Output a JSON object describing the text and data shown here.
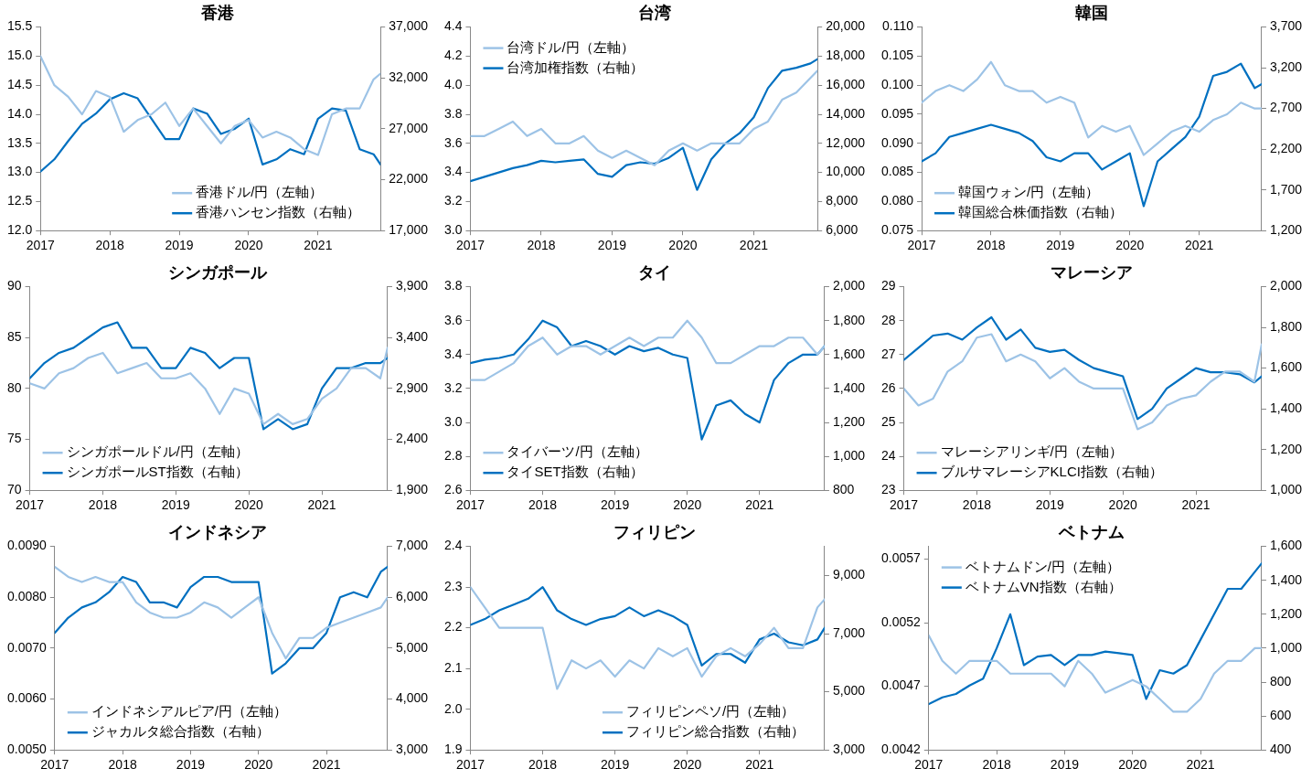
{
  "chart_data": [
    {
      "type": "line",
      "title": "香港",
      "x": [
        2017,
        2017.2,
        2017.4,
        2017.6,
        2017.8,
        2018,
        2018.2,
        2018.4,
        2018.6,
        2018.8,
        2019,
        2019.2,
        2019.4,
        2019.6,
        2019.8,
        2020,
        2020.2,
        2020.4,
        2020.6,
        2020.8,
        2021,
        2021.2,
        2021.4,
        2021.6,
        2021.8,
        2021.9
      ],
      "xlim": [
        2017,
        2021.9
      ],
      "xticks": [
        2017,
        2018,
        2019,
        2020,
        2021
      ],
      "ylim": [
        12,
        15.5
      ],
      "yticks": [
        {
          "value": 12,
          "label": "12.0"
        },
        {
          "value": 12.5,
          "label": "12.5"
        },
        {
          "value": 13,
          "label": "13.0"
        },
        {
          "value": 13.5,
          "label": "13.5"
        },
        {
          "value": 14,
          "label": "14.0"
        },
        {
          "value": 14.5,
          "label": "14.5"
        },
        {
          "value": 15,
          "label": "15.0"
        },
        {
          "value": 15.5,
          "label": "15.5"
        }
      ],
      "y2lim": [
        17000,
        37000
      ],
      "y2ticks": [
        {
          "value": 17000,
          "label": "17,000"
        },
        {
          "value": 22000,
          "label": "22,000"
        },
        {
          "value": 27000,
          "label": "27,000"
        },
        {
          "value": 32000,
          "label": "32,000"
        },
        {
          "value": 37000,
          "label": "37,000"
        }
      ],
      "legend": "bottom right",
      "marker": "none",
      "grid": false,
      "series": [
        {
          "name": "香港ドル/円（左軸）",
          "color": "#9dc3e6",
          "values": [
            15.0,
            14.5,
            14.3,
            14.0,
            14.4,
            14.3,
            13.7,
            13.9,
            14.0,
            14.2,
            13.8,
            14.1,
            13.8,
            13.5,
            13.8,
            13.9,
            13.6,
            13.7,
            13.6,
            13.4,
            13.3,
            14.0,
            14.1,
            14.1,
            14.6,
            14.7
          ]
        },
        {
          "name": "香港ハンセン指数（右軸）",
          "color": "#0070c0",
          "axis": "y2",
          "values": [
            22800,
            24000,
            25800,
            27500,
            28500,
            29900,
            30500,
            30000,
            28000,
            26000,
            26000,
            29000,
            28500,
            26500,
            27000,
            28000,
            23500,
            24000,
            25000,
            24500,
            28000,
            29000,
            28800,
            25000,
            24500,
            23500
          ]
        }
      ]
    },
    {
      "type": "line",
      "title": "台湾",
      "x": [
        2017,
        2017.2,
        2017.4,
        2017.6,
        2017.8,
        2018,
        2018.2,
        2018.4,
        2018.6,
        2018.8,
        2019,
        2019.2,
        2019.4,
        2019.6,
        2019.8,
        2020,
        2020.2,
        2020.4,
        2020.6,
        2020.8,
        2021,
        2021.2,
        2021.4,
        2021.6,
        2021.8,
        2021.9
      ],
      "xlim": [
        2017,
        2021.9
      ],
      "xticks": [
        2017,
        2018,
        2019,
        2020,
        2021
      ],
      "ylim": [
        3,
        4.4
      ],
      "yticks": [
        {
          "value": 3,
          "label": "3.0"
        },
        {
          "value": 3.2,
          "label": "3.2"
        },
        {
          "value": 3.4,
          "label": "3.4"
        },
        {
          "value": 3.6,
          "label": "3.6"
        },
        {
          "value": 3.8,
          "label": "3.8"
        },
        {
          "value": 4,
          "label": "4.0"
        },
        {
          "value": 4.2,
          "label": "4.2"
        },
        {
          "value": 4.4,
          "label": "4.4"
        }
      ],
      "y2lim": [
        6000,
        20000
      ],
      "y2ticks": [
        {
          "value": 6000,
          "label": "6,000"
        },
        {
          "value": 8000,
          "label": "8,000"
        },
        {
          "value": 10000,
          "label": "10,000"
        },
        {
          "value": 12000,
          "label": "12,000"
        },
        {
          "value": 14000,
          "label": "14,000"
        },
        {
          "value": 16000,
          "label": "16,000"
        },
        {
          "value": 18000,
          "label": "18,000"
        },
        {
          "value": 20000,
          "label": "20,000"
        }
      ],
      "legend": "top left",
      "marker": "none",
      "grid": false,
      "series": [
        {
          "name": "台湾ドル/円（左軸）",
          "color": "#9dc3e6",
          "values": [
            3.65,
            3.65,
            3.7,
            3.75,
            3.65,
            3.7,
            3.6,
            3.6,
            3.65,
            3.55,
            3.5,
            3.55,
            3.5,
            3.45,
            3.55,
            3.6,
            3.55,
            3.6,
            3.6,
            3.6,
            3.7,
            3.75,
            3.9,
            3.95,
            4.05,
            4.1
          ]
        },
        {
          "name": "台湾加権指数（右軸）",
          "color": "#0070c0",
          "axis": "y2",
          "values": [
            9400,
            9700,
            10000,
            10300,
            10500,
            10800,
            10700,
            10800,
            10900,
            9900,
            9700,
            10500,
            10700,
            10600,
            11000,
            11700,
            8800,
            10900,
            12000,
            12700,
            13800,
            15800,
            17000,
            17200,
            17500,
            17800
          ]
        }
      ]
    },
    {
      "type": "line",
      "title": "韓国",
      "x": [
        2017,
        2017.2,
        2017.4,
        2017.6,
        2017.8,
        2018,
        2018.2,
        2018.4,
        2018.6,
        2018.8,
        2019,
        2019.2,
        2019.4,
        2019.6,
        2019.8,
        2020,
        2020.2,
        2020.4,
        2020.6,
        2020.8,
        2021,
        2021.2,
        2021.4,
        2021.6,
        2021.8,
        2021.9
      ],
      "xlim": [
        2017,
        2021.9
      ],
      "xticks": [
        2017,
        2018,
        2019,
        2020,
        2021
      ],
      "ylim": [
        0.075,
        0.11
      ],
      "yticks": [
        {
          "value": 0.075,
          "label": "0.075"
        },
        {
          "value": 0.08,
          "label": "0.080"
        },
        {
          "value": 0.085,
          "label": "0.085"
        },
        {
          "value": 0.09,
          "label": "0.090"
        },
        {
          "value": 0.095,
          "label": "0.095"
        },
        {
          "value": 0.1,
          "label": "0.100"
        },
        {
          "value": 0.105,
          "label": "0.105"
        },
        {
          "value": 0.11,
          "label": "0.110"
        }
      ],
      "y2lim": [
        1200,
        3700
      ],
      "y2ticks": [
        {
          "value": 1200,
          "label": "1,200"
        },
        {
          "value": 1700,
          "label": "1,700"
        },
        {
          "value": 2200,
          "label": "2,200"
        },
        {
          "value": 2700,
          "label": "2,700"
        },
        {
          "value": 3200,
          "label": "3,200"
        },
        {
          "value": 3700,
          "label": "3,700"
        }
      ],
      "legend": "bottom left",
      "marker": "none",
      "grid": false,
      "series": [
        {
          "name": "韓国ウォン/円（左軸）",
          "color": "#9dc3e6",
          "values": [
            0.097,
            0.099,
            0.1,
            0.099,
            0.101,
            0.104,
            0.1,
            0.099,
            0.099,
            0.097,
            0.098,
            0.097,
            0.091,
            0.093,
            0.092,
            0.093,
            0.088,
            0.09,
            0.092,
            0.093,
            0.092,
            0.094,
            0.095,
            0.097,
            0.096,
            0.096
          ]
        },
        {
          "name": "韓国総合株価指数（右軸）",
          "color": "#0070c0",
          "axis": "y2",
          "values": [
            2050,
            2150,
            2350,
            2400,
            2450,
            2500,
            2450,
            2400,
            2300,
            2100,
            2050,
            2150,
            2150,
            1950,
            2050,
            2150,
            1500,
            2050,
            2200,
            2350,
            2600,
            3100,
            3150,
            3250,
            2950,
            3000
          ]
        }
      ]
    },
    {
      "type": "line",
      "title": "シンガポール",
      "x": [
        2017,
        2017.2,
        2017.4,
        2017.6,
        2017.8,
        2018,
        2018.2,
        2018.4,
        2018.6,
        2018.8,
        2019,
        2019.2,
        2019.4,
        2019.6,
        2019.8,
        2020,
        2020.2,
        2020.4,
        2020.6,
        2020.8,
        2021,
        2021.2,
        2021.4,
        2021.6,
        2021.8,
        2021.9
      ],
      "xlim": [
        2017,
        2021.9
      ],
      "xticks": [
        2017,
        2018,
        2019,
        2020,
        2021
      ],
      "ylim": [
        70,
        90
      ],
      "yticks": [
        70,
        75,
        80,
        85,
        90
      ],
      "y2lim": [
        1900,
        3900
      ],
      "y2ticks": [
        {
          "value": 1900,
          "label": "1,900"
        },
        {
          "value": 2400,
          "label": "2,400"
        },
        {
          "value": 2900,
          "label": "2,900"
        },
        {
          "value": 3400,
          "label": "3,400"
        },
        {
          "value": 3900,
          "label": "3,900"
        }
      ],
      "legend": "bottom left",
      "marker": "none",
      "grid": false,
      "series": [
        {
          "name": "シンガポールドル/円（左軸）",
          "color": "#9dc3e6",
          "values": [
            80.5,
            80,
            81.5,
            82,
            83,
            83.5,
            81.5,
            82,
            82.5,
            81,
            81,
            81.5,
            80,
            77.5,
            80,
            79.5,
            76.5,
            77.5,
            76.5,
            77,
            79,
            80,
            82,
            82,
            81,
            84
          ]
        },
        {
          "name": "シンガポールST指数（右軸）",
          "color": "#0070c0",
          "axis": "y2",
          "values": [
            3000,
            3150,
            3250,
            3300,
            3400,
            3500,
            3550,
            3300,
            3300,
            3100,
            3100,
            3300,
            3250,
            3100,
            3200,
            3200,
            2500,
            2600,
            2500,
            2550,
            2900,
            3100,
            3100,
            3150,
            3150,
            3200
          ]
        }
      ]
    },
    {
      "type": "line",
      "title": "タイ",
      "x": [
        2017,
        2017.2,
        2017.4,
        2017.6,
        2017.8,
        2018,
        2018.2,
        2018.4,
        2018.6,
        2018.8,
        2019,
        2019.2,
        2019.4,
        2019.6,
        2019.8,
        2020,
        2020.2,
        2020.4,
        2020.6,
        2020.8,
        2021,
        2021.2,
        2021.4,
        2021.6,
        2021.8,
        2021.9
      ],
      "xlim": [
        2017,
        2021.9
      ],
      "xticks": [
        2017,
        2018,
        2019,
        2020,
        2021
      ],
      "ylim": [
        2.6,
        3.8
      ],
      "yticks": [
        {
          "value": 2.6,
          "label": "2.6"
        },
        {
          "value": 2.8,
          "label": "2.8"
        },
        {
          "value": 3,
          "label": "3.0"
        },
        {
          "value": 3.2,
          "label": "3.2"
        },
        {
          "value": 3.4,
          "label": "3.4"
        },
        {
          "value": 3.6,
          "label": "3.6"
        },
        {
          "value": 3.8,
          "label": "3.8"
        }
      ],
      "y2lim": [
        800,
        2000
      ],
      "y2ticks": [
        800,
        {
          "value": 1000,
          "label": "1,000"
        },
        {
          "value": 1200,
          "label": "1,200"
        },
        {
          "value": 1400,
          "label": "1,400"
        },
        {
          "value": 1600,
          "label": "1,600"
        },
        {
          "value": 1800,
          "label": "1,800"
        },
        {
          "value": 2000,
          "label": "2,000"
        }
      ],
      "legend": "bottom left",
      "marker": "none",
      "grid": false,
      "series": [
        {
          "name": "タイバーツ/円（左軸）",
          "color": "#9dc3e6",
          "values": [
            3.25,
            3.25,
            3.3,
            3.35,
            3.45,
            3.5,
            3.4,
            3.45,
            3.45,
            3.4,
            3.45,
            3.5,
            3.45,
            3.5,
            3.5,
            3.6,
            3.5,
            3.35,
            3.35,
            3.4,
            3.45,
            3.45,
            3.5,
            3.5,
            3.4,
            3.45
          ]
        },
        {
          "name": "タイSET指数（右軸）",
          "color": "#0070c0",
          "axis": "y2",
          "values": [
            1550,
            1570,
            1580,
            1600,
            1690,
            1800,
            1760,
            1650,
            1680,
            1650,
            1600,
            1650,
            1620,
            1640,
            1600,
            1580,
            1100,
            1300,
            1330,
            1250,
            1200,
            1450,
            1550,
            1600,
            1600,
            1650
          ]
        }
      ]
    },
    {
      "type": "line",
      "title": "マレーシア",
      "x": [
        2017,
        2017.2,
        2017.4,
        2017.6,
        2017.8,
        2018,
        2018.2,
        2018.4,
        2018.6,
        2018.8,
        2019,
        2019.2,
        2019.4,
        2019.6,
        2019.8,
        2020,
        2020.2,
        2020.4,
        2020.6,
        2020.8,
        2021,
        2021.2,
        2021.4,
        2021.6,
        2021.8,
        2021.9
      ],
      "xlim": [
        2017,
        2021.9
      ],
      "xticks": [
        2017,
        2018,
        2019,
        2020,
        2021
      ],
      "ylim": [
        23,
        29
      ],
      "yticks": [
        23,
        24,
        25,
        26,
        27,
        28,
        29
      ],
      "y2lim": [
        1000,
        2000
      ],
      "y2ticks": [
        {
          "value": 1000,
          "label": "1,000"
        },
        {
          "value": 1200,
          "label": "1,200"
        },
        {
          "value": 1400,
          "label": "1,400"
        },
        {
          "value": 1600,
          "label": "1,600"
        },
        {
          "value": 1800,
          "label": "1,800"
        },
        {
          "value": 2000,
          "label": "2,000"
        }
      ],
      "legend": "bottom left",
      "marker": "none",
      "grid": false,
      "series": [
        {
          "name": "マレーシアリンギ/円（左軸）",
          "color": "#9dc3e6",
          "values": [
            26,
            25.5,
            25.7,
            26.5,
            26.8,
            27.5,
            27.6,
            26.8,
            27,
            26.8,
            26.3,
            26.6,
            26.2,
            26,
            26,
            26,
            24.8,
            25,
            25.5,
            25.7,
            25.8,
            26.2,
            26.5,
            26.5,
            26.2,
            27.3
          ]
        },
        {
          "name": "ブルサマレーシアKLCI指数（右軸）",
          "color": "#0070c0",
          "axis": "y2",
          "values": [
            1640,
            1700,
            1760,
            1770,
            1740,
            1800,
            1850,
            1740,
            1790,
            1700,
            1680,
            1690,
            1640,
            1600,
            1580,
            1560,
            1350,
            1400,
            1500,
            1550,
            1600,
            1580,
            1580,
            1570,
            1530,
            1560
          ]
        }
      ]
    },
    {
      "type": "line",
      "title": "インドネシア",
      "x": [
        2017,
        2017.2,
        2017.4,
        2017.6,
        2017.8,
        2018,
        2018.2,
        2018.4,
        2018.6,
        2018.8,
        2019,
        2019.2,
        2019.4,
        2019.6,
        2019.8,
        2020,
        2020.2,
        2020.4,
        2020.6,
        2020.8,
        2021,
        2021.2,
        2021.4,
        2021.6,
        2021.8,
        2021.9
      ],
      "xlim": [
        2017,
        2021.9
      ],
      "xticks": [
        2017,
        2018,
        2019,
        2020,
        2021
      ],
      "ylim": [
        0.005,
        0.009
      ],
      "yticks": [
        {
          "value": 0.005,
          "label": "0.0050"
        },
        {
          "value": 0.006,
          "label": "0.0060"
        },
        {
          "value": 0.007,
          "label": "0.0070"
        },
        {
          "value": 0.008,
          "label": "0.0080"
        },
        {
          "value": 0.009,
          "label": "0.0090"
        }
      ],
      "y2lim": [
        3000,
        7000
      ],
      "y2ticks": [
        {
          "value": 3000,
          "label": "3,000"
        },
        {
          "value": 4000,
          "label": "4,000"
        },
        {
          "value": 5000,
          "label": "5,000"
        },
        {
          "value": 6000,
          "label": "6,000"
        },
        {
          "value": 7000,
          "label": "7,000"
        }
      ],
      "legend": "bottom left",
      "marker": "none",
      "grid": false,
      "series": [
        {
          "name": "インドネシアルピア/円（左軸）",
          "color": "#9dc3e6",
          "values": [
            0.0086,
            0.0084,
            0.0083,
            0.0084,
            0.0083,
            0.0083,
            0.0079,
            0.0077,
            0.0076,
            0.0076,
            0.0077,
            0.0079,
            0.0078,
            0.0076,
            0.0078,
            0.008,
            0.0073,
            0.0068,
            0.0072,
            0.0072,
            0.0074,
            0.0075,
            0.0076,
            0.0077,
            0.0078,
            0.008
          ]
        },
        {
          "name": "ジャカルタ総合指数（右軸）",
          "color": "#0070c0",
          "axis": "y2",
          "values": [
            5300,
            5600,
            5800,
            5900,
            6100,
            6400,
            6300,
            5900,
            5900,
            5800,
            6200,
            6400,
            6400,
            6300,
            6300,
            6300,
            4500,
            4700,
            5000,
            5000,
            5300,
            6000,
            6100,
            6000,
            6500,
            6600
          ]
        }
      ]
    },
    {
      "type": "line",
      "title": "フィリピン",
      "x": [
        2017,
        2017.2,
        2017.4,
        2017.6,
        2017.8,
        2018,
        2018.2,
        2018.4,
        2018.6,
        2018.8,
        2019,
        2019.2,
        2019.4,
        2019.6,
        2019.8,
        2020,
        2020.2,
        2020.4,
        2020.6,
        2020.8,
        2021,
        2021.2,
        2021.4,
        2021.6,
        2021.8,
        2021.9
      ],
      "xlim": [
        2017,
        2021.9
      ],
      "xticks": [
        2017,
        2018,
        2019,
        2020,
        2021
      ],
      "ylim": [
        1.9,
        2.4
      ],
      "yticks": [
        {
          "value": 1.9,
          "label": "1.9"
        },
        {
          "value": 2,
          "label": "2.0"
        },
        {
          "value": 2.1,
          "label": "2.1"
        },
        {
          "value": 2.2,
          "label": "2.2"
        },
        {
          "value": 2.3,
          "label": "2.3"
        },
        {
          "value": 2.4,
          "label": "2.4"
        }
      ],
      "y2lim": [
        3000,
        10000
      ],
      "y2ticks": [
        {
          "value": 3000,
          "label": "3,000"
        },
        {
          "value": 5000,
          "label": "5,000"
        },
        {
          "value": 7000,
          "label": "7,000"
        },
        {
          "value": 9000,
          "label": "9,000"
        }
      ],
      "legend": "bottom right",
      "marker": "none",
      "grid": false,
      "series": [
        {
          "name": "フィリピンペソ/円（左軸）",
          "color": "#9dc3e6",
          "values": [
            2.3,
            2.25,
            2.2,
            2.2,
            2.2,
            2.2,
            2.05,
            2.12,
            2.1,
            2.12,
            2.08,
            2.12,
            2.1,
            2.15,
            2.13,
            2.15,
            2.08,
            2.13,
            2.15,
            2.13,
            2.16,
            2.2,
            2.15,
            2.15,
            2.25,
            2.27
          ]
        },
        {
          "name": "フィリピン総合指数（右軸）",
          "color": "#0070c0",
          "axis": "y2",
          "values": [
            7300,
            7500,
            7800,
            8000,
            8200,
            8600,
            7800,
            7500,
            7300,
            7500,
            7600,
            7900,
            7600,
            7800,
            7600,
            7300,
            5900,
            6300,
            6300,
            6000,
            6800,
            7000,
            6700,
            6600,
            6800,
            7200
          ]
        }
      ]
    },
    {
      "type": "line",
      "title": "ベトナム",
      "x": [
        2017,
        2017.2,
        2017.4,
        2017.6,
        2017.8,
        2018,
        2018.2,
        2018.4,
        2018.6,
        2018.8,
        2019,
        2019.2,
        2019.4,
        2019.6,
        2019.8,
        2020,
        2020.2,
        2020.4,
        2020.6,
        2020.8,
        2021,
        2021.2,
        2021.4,
        2021.6,
        2021.8,
        2021.9
      ],
      "xlim": [
        2017,
        2021.9
      ],
      "xticks": [
        2017,
        2018,
        2019,
        2020,
        2021
      ],
      "ylim": [
        0.0042,
        0.0058
      ],
      "yticks": [
        {
          "value": 0.0042,
          "label": "0.0042"
        },
        {
          "value": 0.0047,
          "label": "0.0047"
        },
        {
          "value": 0.0052,
          "label": "0.0052"
        },
        {
          "value": 0.0057,
          "label": "0.0057"
        }
      ],
      "y2lim": [
        400,
        1600
      ],
      "y2ticks": [
        400,
        600,
        800,
        {
          "value": 1000,
          "label": "1,000"
        },
        {
          "value": 1200,
          "label": "1,200"
        },
        {
          "value": 1400,
          "label": "1,400"
        },
        {
          "value": 1600,
          "label": "1,600"
        }
      ],
      "legend": "top left",
      "marker": "none",
      "grid": false,
      "series": [
        {
          "name": "ベトナムドン/円（左軸）",
          "color": "#9dc3e6",
          "values": [
            0.0051,
            0.0049,
            0.0048,
            0.0049,
            0.0049,
            0.0049,
            0.0048,
            0.0048,
            0.0048,
            0.0048,
            0.0047,
            0.0049,
            0.0048,
            0.00465,
            0.0047,
            0.00475,
            0.0047,
            0.0046,
            0.0045,
            0.0045,
            0.0046,
            0.0048,
            0.0049,
            0.0049,
            0.005,
            0.005
          ]
        },
        {
          "name": "ベトナムVN指数（右軸）",
          "color": "#0070c0",
          "axis": "y2",
          "values": [
            670,
            710,
            730,
            780,
            820,
            1000,
            1200,
            900,
            950,
            960,
            900,
            960,
            960,
            980,
            970,
            960,
            700,
            870,
            850,
            900,
            1050,
            1200,
            1350,
            1350,
            1450,
            1500
          ]
        }
      ]
    }
  ]
}
